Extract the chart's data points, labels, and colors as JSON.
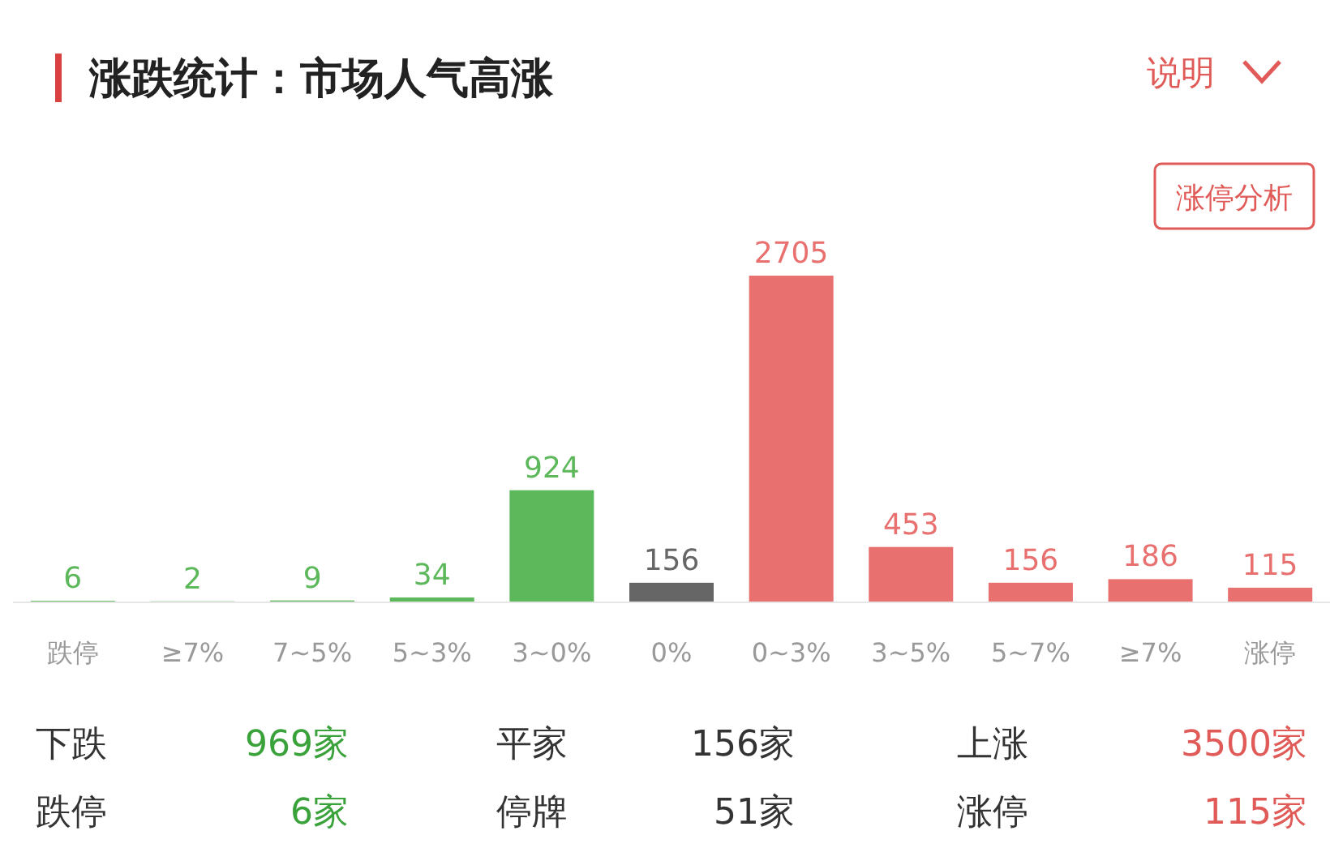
{
  "chart_data": {
    "type": "bar",
    "title": "涨跌统计：市场人气高涨",
    "categories": [
      "跌停",
      "≥7%",
      "7~5%",
      "5~3%",
      "3~0%",
      "0%",
      "0~3%",
      "3~5%",
      "5~7%",
      "≥7%",
      "涨停"
    ],
    "values": [
      6,
      2,
      9,
      34,
      924,
      156,
      2705,
      453,
      156,
      186,
      115
    ],
    "colors": [
      "#5cb85a",
      "#5cb85a",
      "#5cb85a",
      "#5cb85a",
      "#5cb85a",
      "#666666",
      "#e8706f",
      "#e8706f",
      "#e8706f",
      "#e8706f",
      "#e8706f"
    ],
    "data_labels": true,
    "annotations": [
      "说明",
      "涨停分析",
      "下跌",
      "969家",
      "平家",
      "156家",
      "上涨",
      "3500家",
      "跌停",
      "6家",
      "停牌",
      "51家",
      "涨停",
      "115家"
    ]
  }
}
